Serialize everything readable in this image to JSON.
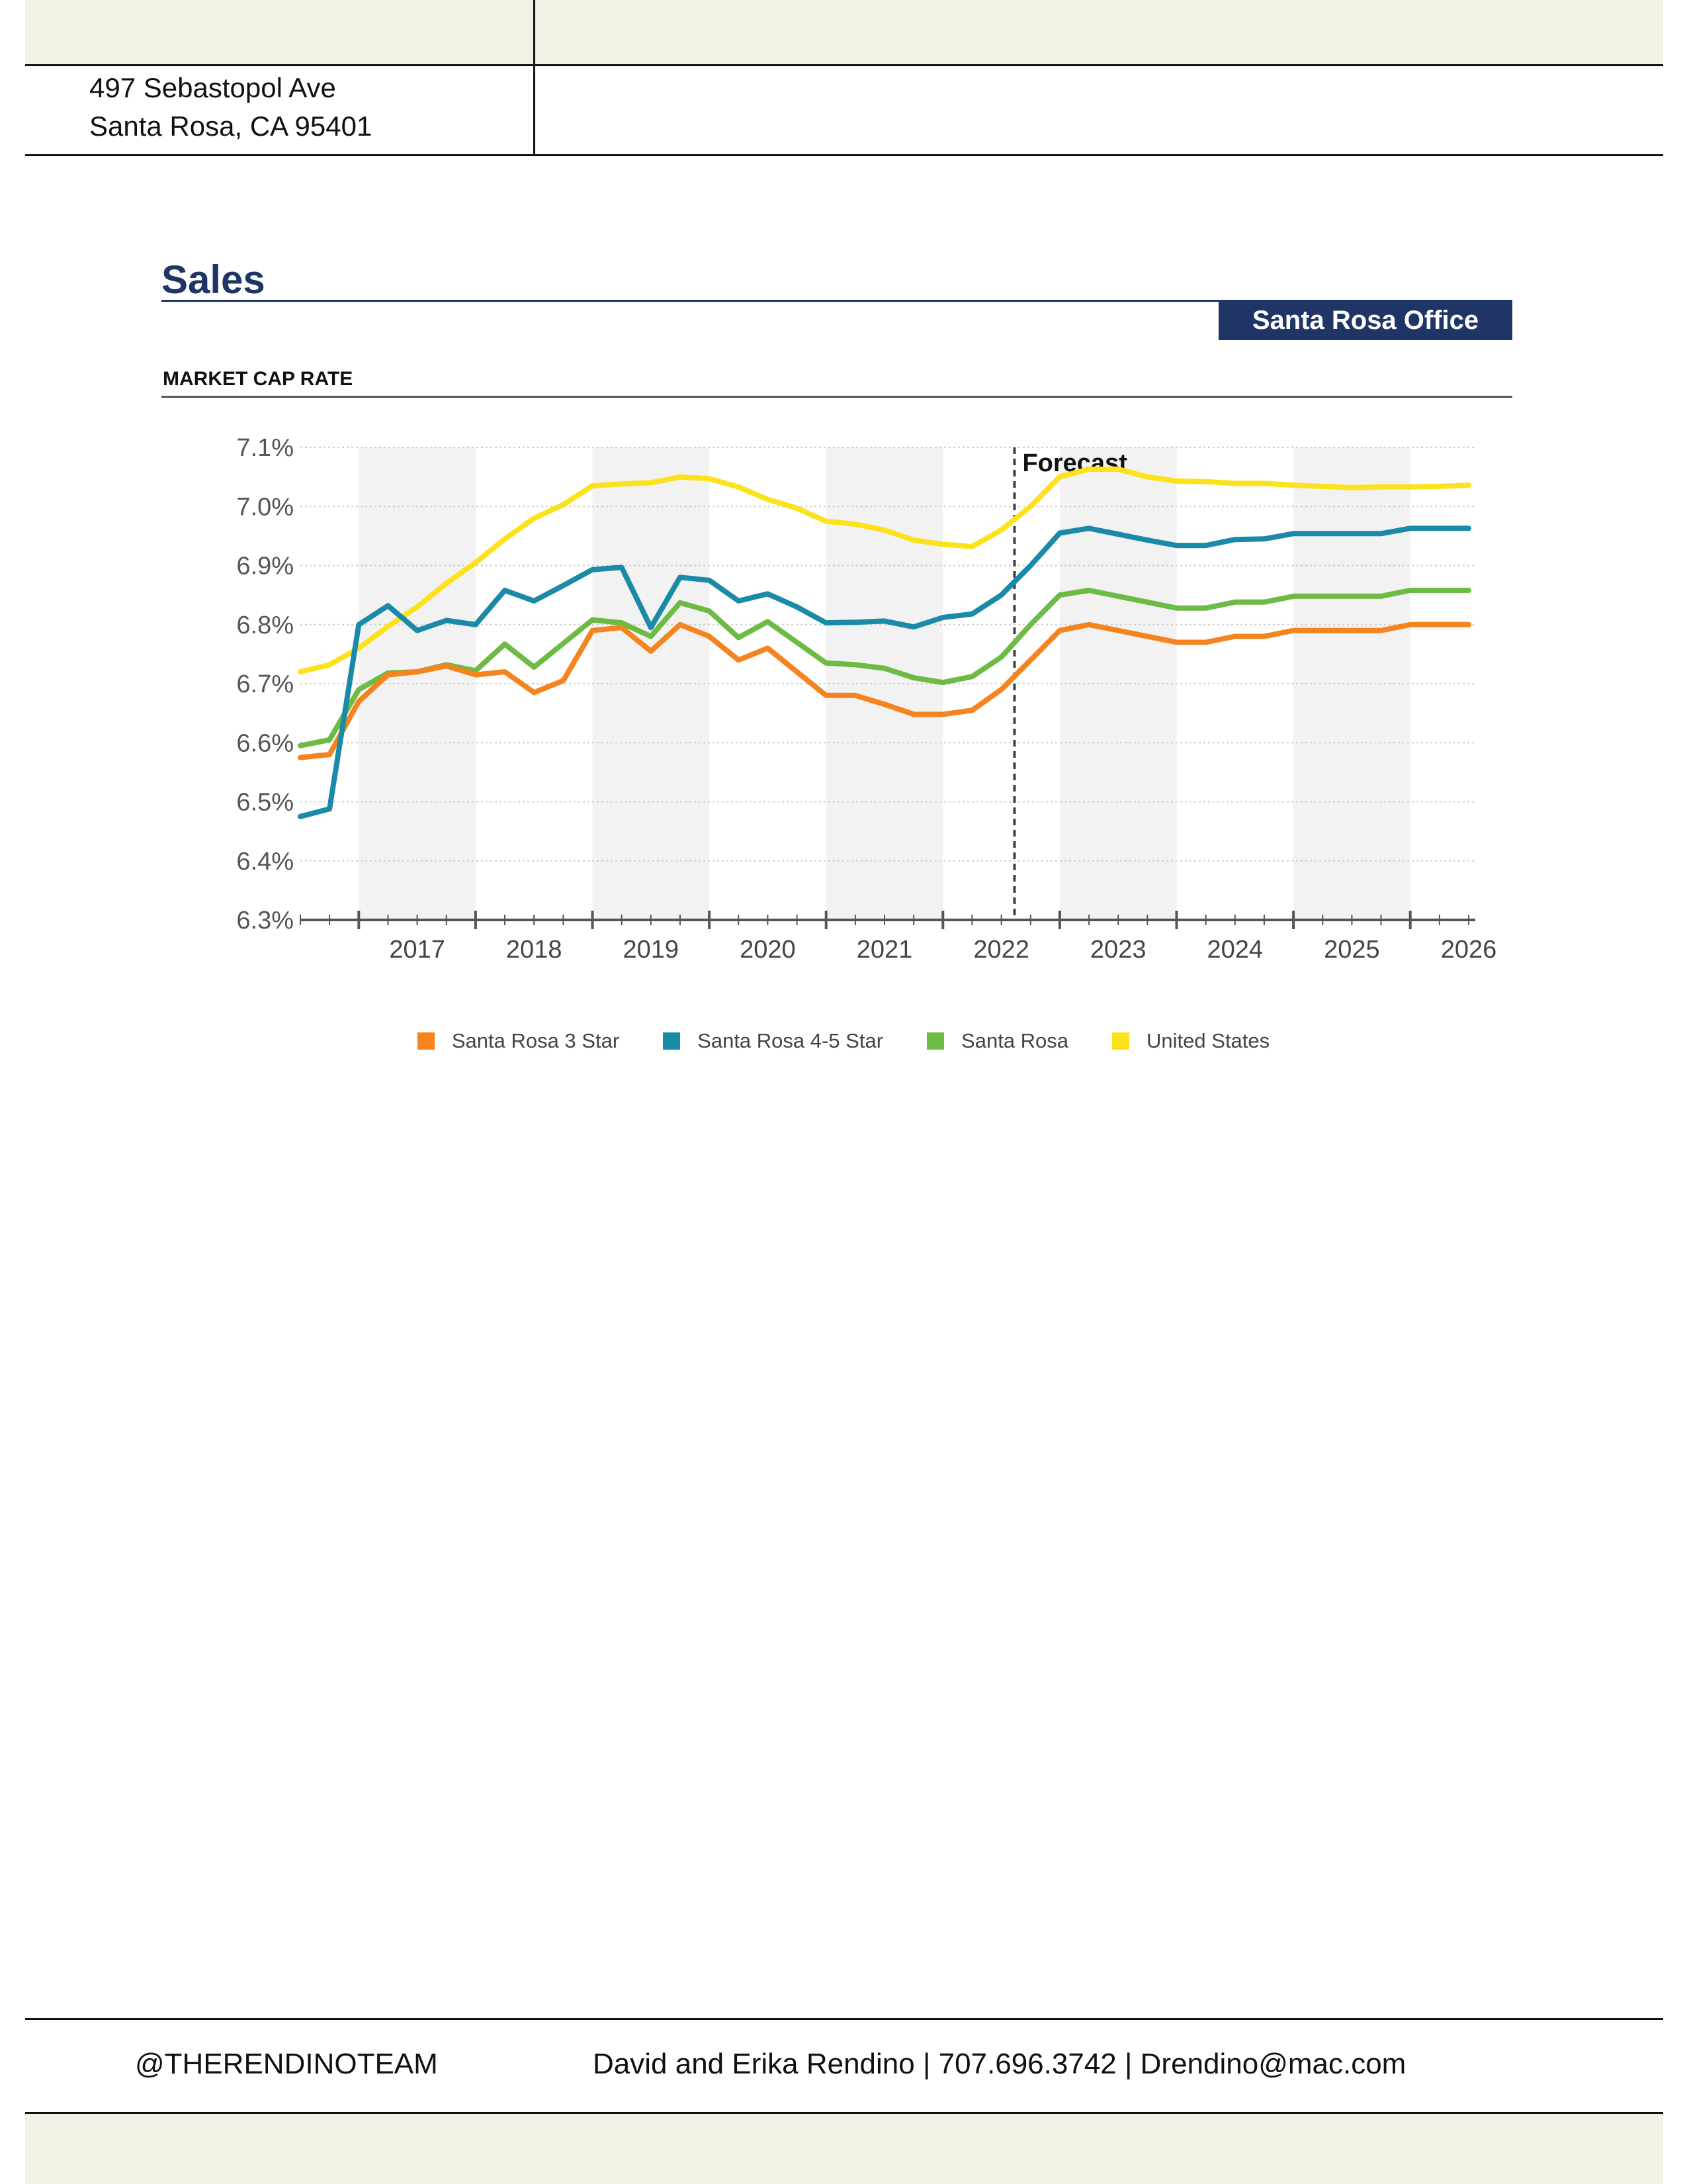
{
  "header": {
    "address_line1": "497 Sebastopol Ave",
    "address_line2": "Santa Rosa, CA 95401"
  },
  "section": {
    "title": "Sales",
    "badge": "Santa Rosa Office"
  },
  "colors": {
    "navy": "#1f3566",
    "santa_rosa_3_star": "#f5841f",
    "santa_rosa_4_5_star": "#1a8aa8",
    "santa_rosa": "#6dbb45",
    "united_states": "#fbe21b"
  },
  "chart_data": {
    "type": "line",
    "title": "MARKET CAP RATE",
    "ylim": [
      6.3,
      7.1
    ],
    "y_ticks": [
      "7.1%",
      "7.0%",
      "6.9%",
      "6.8%",
      "6.7%",
      "6.6%",
      "6.5%",
      "6.4%",
      "6.3%"
    ],
    "x_labels": [
      "2017",
      "2018",
      "2019",
      "2020",
      "2021",
      "2022",
      "2023",
      "2024",
      "2025",
      "2026"
    ],
    "x_start": "2016 Q3",
    "x_end": "2026 Q3",
    "forecast_label": "Forecast",
    "forecast_start": "2022 Q3",
    "grid": true,
    "legend_position": "bottom",
    "series": [
      {
        "name": "Santa Rosa 3 Star",
        "color": "#f5841f",
        "values": [
          6.575,
          6.58,
          6.67,
          6.715,
          6.72,
          6.73,
          6.715,
          6.72,
          6.685,
          6.705,
          6.79,
          6.795,
          6.755,
          6.8,
          6.78,
          6.74,
          6.76,
          6.72,
          6.68,
          6.68,
          6.665,
          6.648,
          6.648,
          6.655,
          6.69,
          6.74,
          6.79,
          6.8,
          6.79,
          6.78,
          6.77,
          6.77,
          6.78,
          6.78,
          6.79,
          6.79,
          6.79,
          6.79,
          6.8,
          6.8,
          6.8
        ]
      },
      {
        "name": "Santa Rosa 4-5 Star",
        "color": "#1a8aa8",
        "values": [
          6.475,
          6.488,
          6.8,
          6.832,
          6.79,
          6.807,
          6.8,
          6.858,
          6.84,
          6.866,
          6.893,
          6.897,
          6.795,
          6.88,
          6.875,
          6.84,
          6.852,
          6.83,
          6.803,
          6.804,
          6.806,
          6.796,
          6.812,
          6.818,
          6.85,
          6.9,
          6.955,
          6.963,
          6.953,
          6.943,
          6.934,
          6.934,
          6.944,
          6.945,
          6.954,
          6.954,
          6.954,
          6.954,
          6.963,
          6.963,
          6.963
        ]
      },
      {
        "name": "Santa Rosa",
        "color": "#6dbb45",
        "values": [
          6.595,
          6.605,
          6.69,
          6.718,
          6.72,
          6.732,
          6.722,
          6.767,
          6.728,
          6.768,
          6.808,
          6.803,
          6.78,
          6.837,
          6.823,
          6.778,
          6.805,
          6.77,
          6.735,
          6.732,
          6.726,
          6.71,
          6.702,
          6.712,
          6.745,
          6.8,
          6.85,
          6.858,
          6.848,
          6.838,
          6.828,
          6.828,
          6.838,
          6.838,
          6.848,
          6.848,
          6.848,
          6.848,
          6.858,
          6.858,
          6.858
        ]
      },
      {
        "name": "United States",
        "color": "#fbe21b",
        "values": [
          6.72,
          6.732,
          6.76,
          6.797,
          6.83,
          6.87,
          6.905,
          6.945,
          6.98,
          7.003,
          7.035,
          7.038,
          7.04,
          7.05,
          7.047,
          7.033,
          7.012,
          6.997,
          6.975,
          6.97,
          6.96,
          6.943,
          6.936,
          6.932,
          6.96,
          7.0,
          7.05,
          7.063,
          7.063,
          7.05,
          7.043,
          7.042,
          7.039,
          7.039,
          7.036,
          7.034,
          7.032,
          7.033,
          7.033,
          7.034,
          7.036
        ]
      }
    ]
  },
  "footer": {
    "handle": "@THERENDINOTEAM",
    "contact": "David and Erika Rendino  |  707.696.3742 | Drendino@mac.com"
  }
}
